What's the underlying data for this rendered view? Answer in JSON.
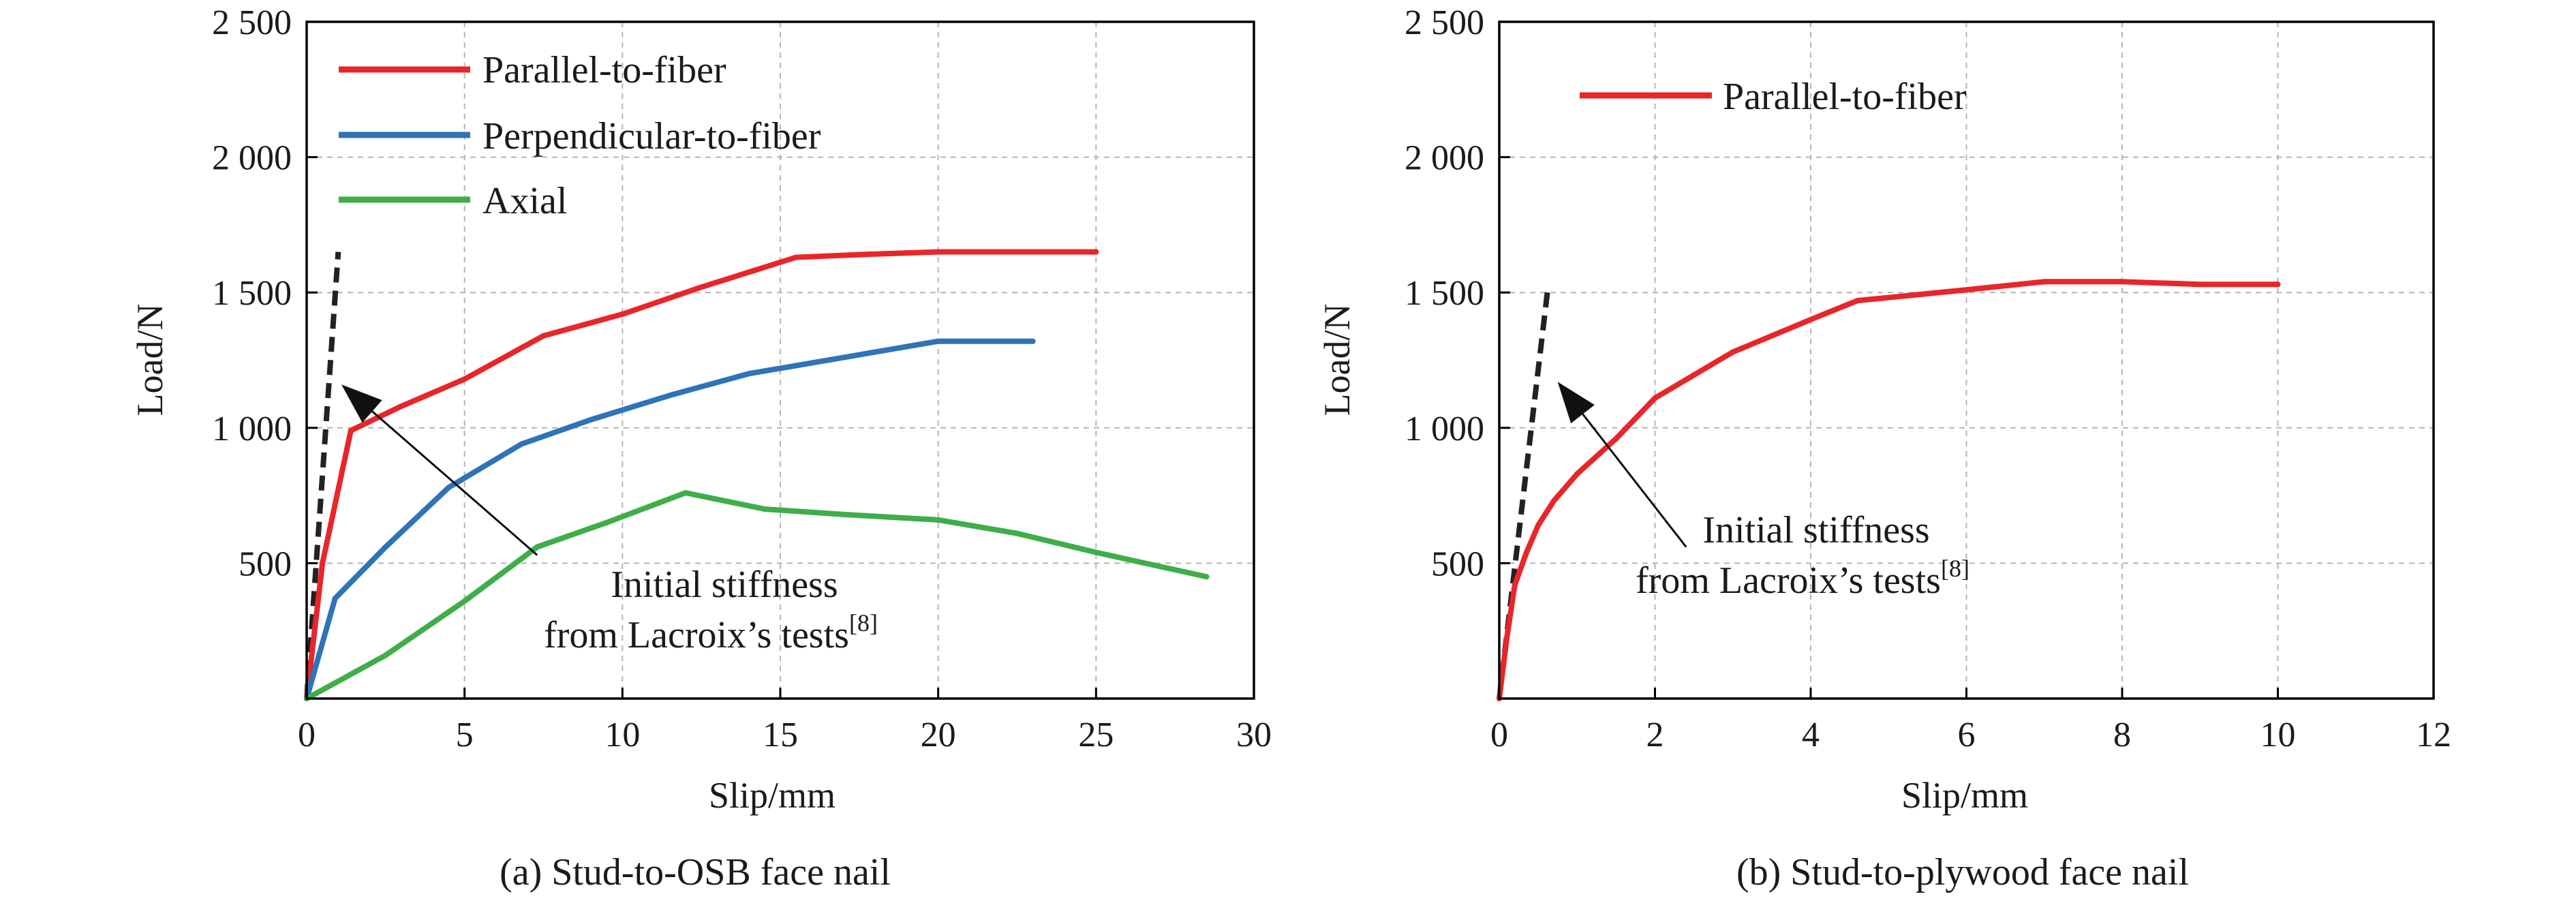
{
  "colors": {
    "parallel": "#e8262a",
    "perpendicular": "#2f73b8",
    "axial": "#3fae49",
    "stiffness": "#222222",
    "grid": "#b5b5b5",
    "frame": "#000000"
  },
  "chart_data": [
    {
      "type": "line",
      "caption": "(a) Stud-to-OSB face nail",
      "xlabel": "Slip/mm",
      "ylabel": "Load/N",
      "xlim": [
        0,
        30
      ],
      "ylim": [
        0,
        2500
      ],
      "xticks": [
        0,
        5,
        10,
        15,
        20,
        25,
        30
      ],
      "xtick_labels": [
        "0",
        "5",
        "10",
        "15",
        "20",
        "25",
        "30"
      ],
      "yticks": [
        500,
        1000,
        1500,
        2000,
        2500
      ],
      "ytick_labels": [
        "500",
        "1 000",
        "1 500",
        "2 000",
        "2 500"
      ],
      "grid": true,
      "legend_position": "top-left",
      "series": [
        {
          "name": "Parallel-to-fiber",
          "color_key": "parallel",
          "x": [
            0,
            0.5,
            1.4,
            3.0,
            5.0,
            7.5,
            10.0,
            12.5,
            15.5,
            17.5,
            20.0,
            22.5,
            25.0
          ],
          "y": [
            0,
            500,
            990,
            1080,
            1180,
            1340,
            1420,
            1520,
            1630,
            1640,
            1650,
            1650,
            1650
          ]
        },
        {
          "name": "Perpendicular-to-fiber",
          "color_key": "perpendicular",
          "x": [
            0,
            0.9,
            2.5,
            4.5,
            6.8,
            9.0,
            11.5,
            14.0,
            17.0,
            20.0,
            23.0
          ],
          "y": [
            0,
            370,
            560,
            780,
            940,
            1030,
            1120,
            1200,
            1260,
            1320,
            1320
          ]
        },
        {
          "name": "Axial",
          "color_key": "axial",
          "x": [
            0,
            2.5,
            5.0,
            7.3,
            9.5,
            12.0,
            14.5,
            17.0,
            20.0,
            22.5,
            25.0,
            28.5
          ],
          "y": [
            0,
            160,
            360,
            560,
            650,
            760,
            700,
            680,
            660,
            610,
            540,
            450
          ]
        }
      ],
      "reference_line": {
        "style": "dashed",
        "color_key": "stiffness",
        "x": [
          0,
          1.0
        ],
        "y": [
          0,
          1650
        ]
      },
      "annotation": {
        "line1": "Initial stiffness",
        "line2": "from Lacroix’s tests",
        "ref": "[8]",
        "arrow_from": [
          7.3,
          530
        ],
        "arrow_to": [
          1.1,
          1160
        ]
      }
    },
    {
      "type": "line",
      "caption": "(b) Stud-to-plywood face nail",
      "xlabel": "Slip/mm",
      "ylabel": "Load/N",
      "xlim": [
        0,
        12
      ],
      "ylim": [
        0,
        2500
      ],
      "xticks": [
        0,
        2,
        4,
        6,
        8,
        10,
        12
      ],
      "xtick_labels": [
        "0",
        "2",
        "4",
        "6",
        "8",
        "10",
        "12"
      ],
      "yticks": [
        500,
        1000,
        1500,
        2000,
        2500
      ],
      "ytick_labels": [
        "500",
        "1 000",
        "1 500",
        "2 000",
        "2 500"
      ],
      "grid": true,
      "legend_position": "top-left",
      "series": [
        {
          "name": "Parallel-to-fiber",
          "color_key": "parallel",
          "x": [
            0,
            0.1,
            0.2,
            0.35,
            0.5,
            0.7,
            1.0,
            1.5,
            2.0,
            3.0,
            4.0,
            4.6,
            6.0,
            7.0,
            8.0,
            9.0,
            10.0
          ],
          "y": [
            0,
            230,
            420,
            540,
            640,
            730,
            830,
            960,
            1110,
            1280,
            1400,
            1470,
            1510,
            1540,
            1540,
            1530,
            1530
          ]
        }
      ],
      "reference_line": {
        "style": "dashed",
        "color_key": "stiffness",
        "x": [
          0,
          0.63
        ],
        "y": [
          0,
          1530
        ]
      },
      "annotation": {
        "line1": "Initial stiffness",
        "line2": "from Lacroix’s tests",
        "ref": "[8]",
        "arrow_from": [
          2.4,
          560
        ],
        "arrow_to": [
          0.75,
          1170
        ]
      }
    }
  ]
}
